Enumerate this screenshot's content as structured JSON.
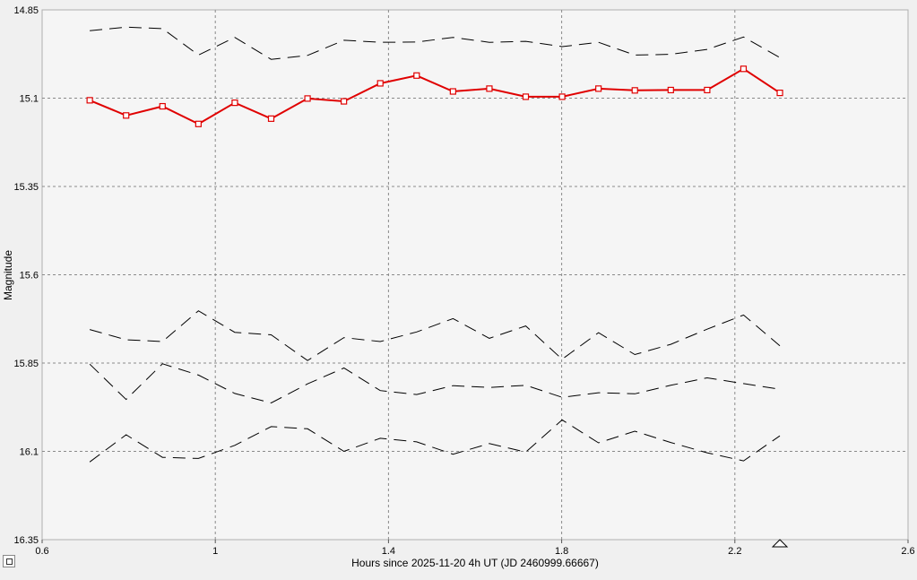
{
  "chart_data": {
    "type": "line",
    "xlabel": "Hours since 2025-11-20 4h UT (JD 2460999.66667)",
    "ylabel": "Magnitude",
    "xlim": [
      0.6,
      2.6
    ],
    "ylim": [
      14.85,
      16.35
    ],
    "y_inverted": true,
    "grid": true,
    "x_ticks": [
      "0.6",
      "1",
      "1.4",
      "1.8",
      "2.2",
      "2.6"
    ],
    "x_tick_values": [
      0.6,
      1.0,
      1.4,
      1.8,
      2.2,
      2.6
    ],
    "y_ticks": [
      "14.85",
      "15.1",
      "15.35",
      "15.6",
      "15.85",
      "16.1",
      "16.35"
    ],
    "y_tick_values": [
      14.85,
      15.1,
      15.35,
      15.6,
      15.85,
      16.1,
      16.35
    ],
    "x": [
      0.71,
      0.794,
      0.878,
      0.961,
      1.045,
      1.129,
      1.213,
      1.297,
      1.381,
      1.465,
      1.549,
      1.633,
      1.717,
      1.801,
      1.885,
      1.969,
      2.052,
      2.136,
      2.22,
      2.304
    ],
    "series": [
      {
        "style": "red-markers",
        "color": "#e00000",
        "values": [
          15.106,
          15.149,
          15.123,
          15.173,
          15.113,
          15.158,
          15.101,
          15.109,
          15.058,
          15.036,
          15.081,
          15.073,
          15.096,
          15.096,
          15.073,
          15.078,
          15.077,
          15.077,
          15.017,
          15.085
        ]
      },
      {
        "style": "dashed",
        "color": "#000000",
        "values": [
          14.909,
          14.899,
          14.903,
          14.978,
          14.928,
          14.99,
          14.979,
          14.936,
          14.942,
          14.941,
          14.928,
          14.942,
          14.939,
          14.954,
          14.942,
          14.978,
          14.976,
          14.962,
          14.927,
          14.985
        ]
      },
      {
        "style": "dashed",
        "color": "#000000",
        "values": [
          15.755,
          15.784,
          15.789,
          15.702,
          15.763,
          15.77,
          15.843,
          15.778,
          15.789,
          15.762,
          15.724,
          15.78,
          15.745,
          15.839,
          15.764,
          15.826,
          15.797,
          15.754,
          15.714,
          15.801
        ]
      },
      {
        "style": "dashed",
        "color": "#000000",
        "values": [
          15.853,
          15.953,
          15.852,
          15.884,
          15.936,
          15.963,
          15.909,
          15.864,
          15.928,
          15.939,
          15.914,
          15.919,
          15.913,
          15.947,
          15.934,
          15.937,
          15.913,
          15.892,
          15.908,
          15.924
        ]
      },
      {
        "style": "dashed",
        "color": "#000000",
        "values": [
          16.13,
          16.053,
          16.117,
          16.12,
          16.083,
          16.03,
          16.036,
          16.1,
          16.063,
          16.073,
          16.108,
          16.078,
          16.102,
          16.011,
          16.076,
          16.043,
          16.075,
          16.104,
          16.127,
          16.056
        ]
      }
    ],
    "annotations": [
      {
        "type": "triangle-marker",
        "x": 2.304,
        "y": 16.35
      }
    ]
  }
}
